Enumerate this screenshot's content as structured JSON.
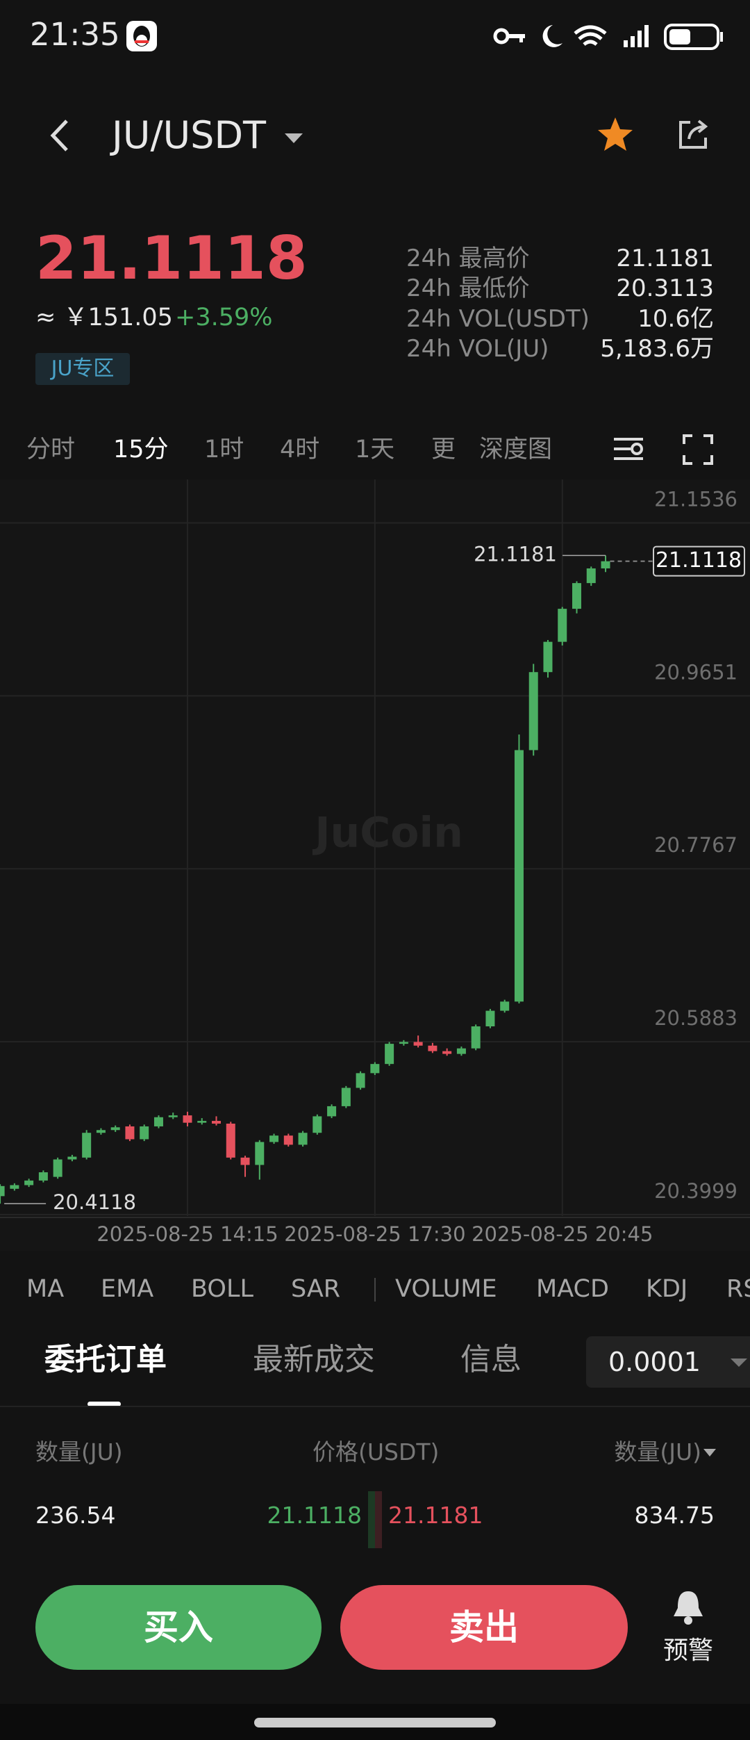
{
  "status_bar": {
    "time": "21:35"
  },
  "header": {
    "pair": "JU/USDT"
  },
  "ticker": {
    "price": "21.1118",
    "cny": "≈ ￥151.05",
    "change": "+3.59%",
    "zone": "JU专区",
    "stats": [
      {
        "label": "24h 最高价",
        "value": "21.1181"
      },
      {
        "label": "24h 最低价",
        "value": "20.3113"
      },
      {
        "label": "24h VOL(USDT)",
        "value": "10.6亿"
      },
      {
        "label": "24h VOL(JU)",
        "value": "5,183.6万"
      }
    ]
  },
  "timeframes": [
    "分时",
    "15分",
    "1时",
    "4时",
    "1天",
    "更",
    "深度图"
  ],
  "chart_data": {
    "type": "candlestick",
    "watermark": "JuCoin",
    "categories": [
      null,
      null,
      null,
      null,
      null,
      null,
      null,
      null,
      null,
      null,
      null,
      null,
      null,
      "2025-08-25 14:15",
      null,
      null,
      null,
      null,
      null,
      null,
      null,
      null,
      null,
      null,
      null,
      null,
      "2025-08-25 17:30",
      null,
      null,
      null,
      null,
      null,
      null,
      null,
      null,
      null,
      null,
      null,
      null,
      "2025-08-25 20:45",
      null,
      null,
      null
    ],
    "open": [
      20.42,
      20.428,
      20.432,
      20.437,
      20.441,
      20.46,
      20.462,
      20.489,
      20.492,
      20.496,
      20.482,
      20.496,
      20.506,
      20.508,
      20.5,
      20.502,
      20.499,
      20.462,
      20.454,
      20.479,
      20.486,
      20.476,
      20.489,
      20.507,
      20.518,
      20.538,
      20.554,
      20.564,
      20.586,
      20.588,
      20.584,
      20.578,
      20.575,
      20.581,
      20.605,
      20.622,
      20.632,
      20.906,
      20.991,
      21.024,
      21.06,
      21.088,
      21.104
    ],
    "high": [
      20.433,
      20.434,
      20.439,
      20.448,
      20.462,
      20.465,
      20.492,
      20.494,
      20.497,
      20.498,
      20.498,
      20.508,
      20.511,
      20.512,
      20.505,
      20.507,
      20.501,
      20.464,
      20.481,
      20.488,
      20.488,
      20.491,
      20.509,
      20.52,
      20.54,
      20.556,
      20.566,
      20.588,
      20.59,
      20.595,
      20.587,
      20.581,
      20.583,
      20.607,
      20.624,
      20.634,
      20.923,
      21.0,
      21.026,
      21.062,
      21.09,
      21.106,
      21.1181
    ],
    "low": [
      20.4118,
      20.426,
      20.43,
      20.435,
      20.439,
      20.458,
      20.46,
      20.487,
      20.49,
      20.48,
      20.48,
      20.494,
      20.504,
      20.496,
      20.498,
      20.497,
      20.46,
      20.441,
      20.438,
      20.477,
      20.474,
      20.474,
      20.487,
      20.505,
      20.516,
      20.536,
      20.552,
      20.562,
      20.584,
      20.582,
      20.576,
      20.573,
      20.573,
      20.579,
      20.603,
      20.62,
      20.63,
      20.9,
      20.985,
      21.02,
      21.055,
      21.085,
      21.1
    ],
    "close": [
      20.431,
      20.432,
      20.437,
      20.446,
      20.46,
      20.463,
      20.489,
      20.492,
      20.495,
      20.482,
      20.496,
      20.506,
      20.508,
      20.5,
      20.502,
      20.499,
      20.462,
      20.454,
      20.479,
      20.486,
      20.476,
      20.489,
      20.507,
      20.518,
      20.538,
      20.554,
      20.564,
      20.586,
      20.588,
      20.584,
      20.578,
      20.575,
      20.581,
      20.605,
      20.622,
      20.632,
      20.906,
      20.991,
      21.024,
      21.06,
      21.088,
      21.104,
      21.1118
    ],
    "up_color": "#4caf63",
    "down_color": "#e5515d",
    "ylim": [
      20.3983,
      21.2009
    ],
    "yticks": [
      21.1536,
      20.9651,
      20.7767,
      20.5883,
      20.3999
    ],
    "grid": true,
    "max_label": 21.1181,
    "min_label": 20.4118,
    "last_price": 21.1118
  },
  "indicators": [
    "MA",
    "EMA",
    "BOLL",
    "SAR",
    "VOLUME",
    "MACD",
    "KDJ",
    "RSI"
  ],
  "order_tabs": [
    "委托订单",
    "最新成交",
    "信息"
  ],
  "precision": "0.0001",
  "book": {
    "headers": [
      "数量(JU)",
      "价格(USDT)",
      "数量(JU)"
    ],
    "row": [
      "236.54",
      "21.1118",
      "21.1181",
      "834.75"
    ]
  },
  "actions": {
    "buy": "买入",
    "sell": "卖出",
    "alert": "预警"
  }
}
